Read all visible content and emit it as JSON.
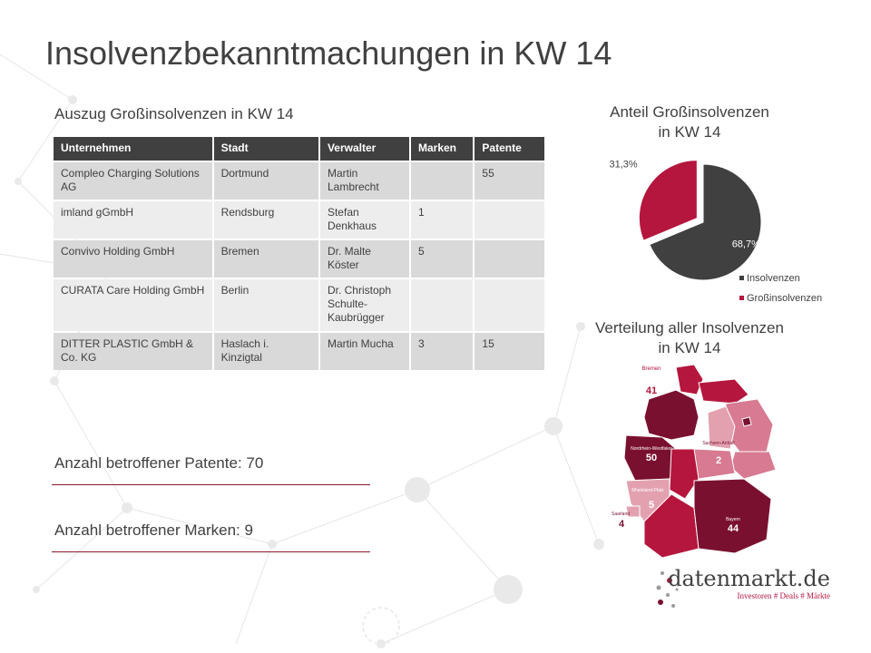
{
  "title": "Insolvenzbekanntmachungen in KW 14",
  "table": {
    "heading": "Auszug Großinsolvenzen in KW 14",
    "columns": [
      "Unternehmen",
      "Stadt",
      "Verwalter",
      "Marken",
      "Patente"
    ],
    "rows": [
      [
        "Compleo Charging Solutions AG",
        "Dortmund",
        "Martin Lambrecht",
        "",
        "55"
      ],
      [
        "imland gGmbH",
        "Rendsburg",
        "Stefan Denkhaus",
        "1",
        ""
      ],
      [
        "Convivo Holding GmbH",
        "Bremen",
        "Dr. Malte Köster",
        "5",
        ""
      ],
      [
        "CURATA Care Holding GmbH",
        "Berlin",
        "Dr. Christoph Schulte-Kaubrügger",
        "",
        ""
      ],
      [
        "DITTER PLASTIC GmbH & Co. KG",
        "Haslach i. Kinzigtal",
        "Martin Mucha",
        "3",
        "15"
      ]
    ]
  },
  "counts": {
    "patents": "Anzahl betroffener Patente: 70",
    "marks": "Anzahl betroffener Marken: 9"
  },
  "chart_data": [
    {
      "type": "pie",
      "title": "Anteil Großinsolvenzen in KW 14",
      "title_lines": [
        "Anteil Großinsolvenzen",
        "in KW 14"
      ],
      "slices": [
        {
          "name": "Insolvenzen",
          "value": 68.7,
          "label": "68,7%",
          "color": "#404040"
        },
        {
          "name": "Großinsolvenzen",
          "value": 31.3,
          "label": "31,3%",
          "color": "#b5163d"
        }
      ],
      "legend_position": "bottom-right"
    },
    {
      "type": "map",
      "title": "Verteilung aller Insolvenzen in KW 14",
      "title_lines": [
        "Verteilung aller Insolvenzen",
        "in KW 14"
      ],
      "regions": [
        {
          "name": "Bremen",
          "value": 41
        },
        {
          "name": "Nordrhein-Westfalen",
          "value": 50
        },
        {
          "name": "Sachsen-Anhalt",
          "value": 2
        },
        {
          "name": "Rheinland-Pfalz",
          "value": 5
        },
        {
          "name": "Saarland",
          "value": 4
        },
        {
          "name": "Bayern",
          "value": 44
        }
      ],
      "colors": {
        "dark": "#7a1030",
        "mid": "#b5163d",
        "light": "#e3a1b0",
        "lighter": "#d77a92"
      }
    }
  ],
  "logo": {
    "name": "datenmarkt.de",
    "tagline": "Investoren # Deals # Märkte"
  }
}
